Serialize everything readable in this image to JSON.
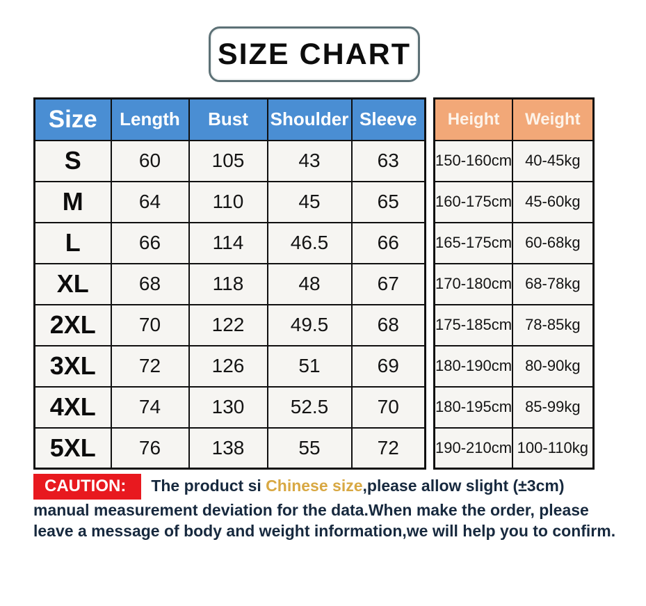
{
  "title": "SIZE CHART",
  "chart_data": {
    "type": "table",
    "title": "SIZE CHART",
    "columns": [
      "Size",
      "Length",
      "Bust",
      "Shoulder",
      "Sleeve",
      "Height",
      "Weight"
    ],
    "rows": [
      [
        "S",
        "60",
        "105",
        "43",
        "63",
        "150-160cm",
        "40-45kg"
      ],
      [
        "M",
        "64",
        "110",
        "45",
        "65",
        "160-175cm",
        "45-60kg"
      ],
      [
        "L",
        "66",
        "114",
        "46.5",
        "66",
        "165-175cm",
        "60-68kg"
      ],
      [
        "XL",
        "68",
        "118",
        "48",
        "67",
        "170-180cm",
        "68-78kg"
      ],
      [
        "2XL",
        "70",
        "122",
        "49.5",
        "68",
        "175-185cm",
        "78-85kg"
      ],
      [
        "3XL",
        "72",
        "126",
        "51",
        "69",
        "180-190cm",
        "80-90kg"
      ],
      [
        "4XL",
        "74",
        "130",
        "52.5",
        "70",
        "180-195cm",
        "85-99kg"
      ],
      [
        "5XL",
        "76",
        "138",
        "55",
        "72",
        "190-210cm",
        "100-110kg"
      ]
    ]
  },
  "caution": {
    "label": "CAUTION:",
    "text_before": "The product si ",
    "highlight": "Chinese size",
    "text_after": ",please allow slight (±3cm) manual measurement deviation for the data.When make the order, please leave a message of body and weight information,we will help you to confirm."
  },
  "colors": {
    "header_blue": "#4a8ed3",
    "header_orange": "#f2a878",
    "caution_red": "#e8191f",
    "highlight_gold": "#d8a843",
    "caution_text": "#17293e",
    "cell_background": "#f6f5f2",
    "border_black": "#101010"
  }
}
